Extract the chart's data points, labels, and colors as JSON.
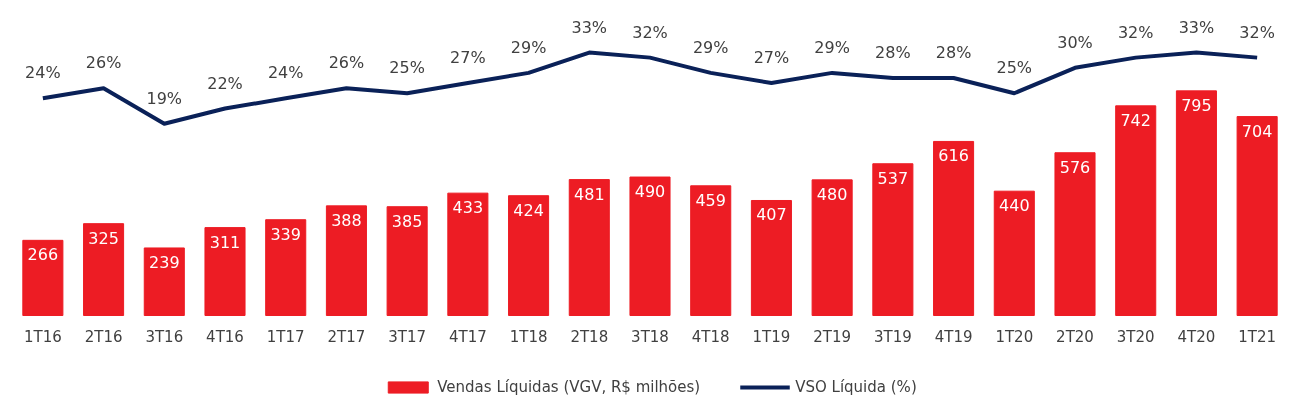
{
  "chart_data": {
    "type": "bar",
    "categories": [
      "1T16",
      "2T16",
      "3T16",
      "4T16",
      "1T17",
      "2T17",
      "3T17",
      "4T17",
      "1T18",
      "2T18",
      "3T18",
      "4T18",
      "1T19",
      "2T19",
      "3T19",
      "4T19",
      "1T20",
      "2T20",
      "3T20",
      "4T20",
      "1T21"
    ],
    "series": [
      {
        "name": "Vendas Líquidas (VGV, R$ milhões)",
        "color": "#ed1c24",
        "values": [
          266,
          325,
          239,
          311,
          339,
          388,
          385,
          433,
          424,
          481,
          490,
          459,
          407,
          480,
          537,
          616,
          440,
          576,
          742,
          795,
          704
        ]
      },
      {
        "name": "VSO Líquida (%)",
        "type": "line",
        "axis": "y2",
        "color": "#0a2158",
        "values": [
          24,
          26,
          19,
          22,
          24,
          26,
          25,
          27,
          29,
          33,
          32,
          29,
          27,
          29,
          28,
          28,
          25,
          30,
          32,
          33,
          32
        ],
        "value_labels": [
          "24%",
          "26%",
          "19%",
          "22%",
          "24%",
          "26%",
          "25%",
          "27%",
          "29%",
          "33%",
          "32%",
          "29%",
          "27%",
          "29%",
          "28%",
          "28%",
          "25%",
          "30%",
          "32%",
          "33%",
          "32%"
        ]
      }
    ],
    "tick_labels": "x",
    "data_labels": true,
    "legend": "bottom",
    "line_style": "solid"
  }
}
